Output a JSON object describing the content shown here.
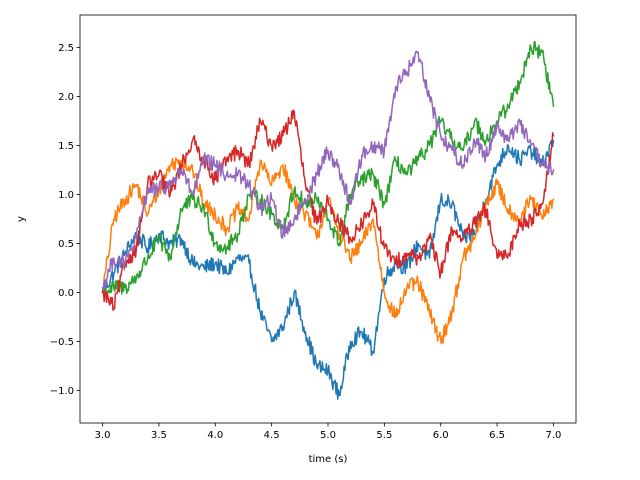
{
  "chart_data": {
    "type": "line",
    "title": "",
    "xlabel": "time (s)",
    "ylabel": "y",
    "xlim": [
      2.8,
      7.2
    ],
    "ylim": [
      -1.33,
      2.83
    ],
    "xticks": [
      3.0,
      3.5,
      4.0,
      4.5,
      5.0,
      5.5,
      6.0,
      6.5,
      7.0
    ],
    "xtick_labels": [
      "3.0",
      "3.5",
      "4.0",
      "4.5",
      "5.0",
      "5.5",
      "6.0",
      "6.5",
      "7.0"
    ],
    "yticks": [
      -1.0,
      -0.5,
      0.0,
      0.5,
      1.0,
      1.5,
      2.0,
      2.5
    ],
    "ytick_labels": [
      "−1.0",
      "−0.5",
      "0.0",
      "0.5",
      "1.0",
      "1.5",
      "2.0",
      "2.5"
    ],
    "grid": false,
    "legend": false,
    "series": [
      {
        "color": "#1f77b4",
        "x": [
          3.0,
          3.1,
          3.2,
          3.3,
          3.4,
          3.5,
          3.6,
          3.7,
          3.8,
          3.9,
          4.0,
          4.1,
          4.2,
          4.3,
          4.4,
          4.5,
          4.6,
          4.7,
          4.8,
          4.9,
          5.0,
          5.1,
          5.2,
          5.3,
          5.4,
          5.5,
          5.6,
          5.7,
          5.8,
          5.9,
          6.0,
          6.1,
          6.2,
          6.3,
          6.4,
          6.5,
          6.6,
          6.7,
          6.8,
          6.9,
          7.0
        ],
        "y": [
          0.0,
          0.2,
          0.4,
          0.6,
          0.45,
          0.6,
          0.5,
          0.55,
          0.3,
          0.25,
          0.3,
          0.2,
          0.35,
          0.3,
          -0.2,
          -0.5,
          -0.35,
          0.0,
          -0.4,
          -0.75,
          -0.8,
          -1.05,
          -0.5,
          -0.4,
          -0.6,
          0.15,
          0.3,
          0.25,
          0.5,
          0.35,
          0.95,
          0.9,
          0.55,
          0.6,
          0.95,
          1.3,
          1.5,
          1.35,
          1.45,
          1.3,
          1.55
        ]
      },
      {
        "color": "#ff7f0e",
        "x": [
          3.0,
          3.1,
          3.2,
          3.3,
          3.4,
          3.5,
          3.6,
          3.7,
          3.8,
          3.9,
          4.0,
          4.1,
          4.2,
          4.3,
          4.4,
          4.5,
          4.6,
          4.7,
          4.8,
          4.9,
          5.0,
          5.1,
          5.2,
          5.3,
          5.4,
          5.5,
          5.6,
          5.7,
          5.8,
          5.9,
          6.0,
          6.1,
          6.2,
          6.3,
          6.4,
          6.5,
          6.6,
          6.7,
          6.8,
          6.9,
          7.0
        ],
        "y": [
          0.0,
          0.75,
          0.95,
          1.1,
          0.8,
          1.05,
          1.3,
          1.35,
          1.25,
          0.9,
          0.8,
          0.65,
          0.85,
          0.75,
          1.35,
          1.1,
          1.3,
          0.95,
          0.8,
          0.55,
          0.95,
          0.6,
          0.35,
          0.5,
          0.75,
          0.0,
          -0.25,
          0.05,
          0.1,
          -0.2,
          -0.5,
          -0.2,
          0.35,
          0.55,
          0.9,
          1.1,
          0.85,
          0.75,
          0.95,
          0.75,
          0.95
        ]
      },
      {
        "color": "#2ca02c",
        "x": [
          3.0,
          3.1,
          3.2,
          3.3,
          3.4,
          3.5,
          3.6,
          3.7,
          3.8,
          3.9,
          4.0,
          4.1,
          4.2,
          4.3,
          4.4,
          4.5,
          4.6,
          4.7,
          4.8,
          4.9,
          5.0,
          5.1,
          5.2,
          5.3,
          5.4,
          5.5,
          5.6,
          5.7,
          5.8,
          5.9,
          6.0,
          6.1,
          6.2,
          6.3,
          6.4,
          6.5,
          6.6,
          6.7,
          6.8,
          6.9,
          7.0
        ],
        "y": [
          0.0,
          0.05,
          0.05,
          0.15,
          0.35,
          0.55,
          0.35,
          0.85,
          0.95,
          0.85,
          0.5,
          0.45,
          0.6,
          1.0,
          0.95,
          0.8,
          0.65,
          1.05,
          0.9,
          0.95,
          0.75,
          0.5,
          1.0,
          1.15,
          1.2,
          0.9,
          1.35,
          1.2,
          1.35,
          1.5,
          1.75,
          1.55,
          1.45,
          1.75,
          1.55,
          1.75,
          1.9,
          2.15,
          2.5,
          2.45,
          1.9
        ]
      },
      {
        "color": "#d62728",
        "x": [
          3.0,
          3.1,
          3.2,
          3.3,
          3.4,
          3.5,
          3.6,
          3.7,
          3.8,
          3.9,
          4.0,
          4.1,
          4.2,
          4.3,
          4.4,
          4.5,
          4.6,
          4.7,
          4.8,
          4.9,
          5.0,
          5.1,
          5.2,
          5.3,
          5.4,
          5.5,
          5.6,
          5.7,
          5.8,
          5.9,
          6.0,
          6.1,
          6.2,
          6.3,
          6.4,
          6.5,
          6.6,
          6.7,
          6.8,
          6.9,
          7.0
        ],
        "y": [
          0.0,
          -0.15,
          0.3,
          0.45,
          1.1,
          1.2,
          1.0,
          1.3,
          1.55,
          1.35,
          1.15,
          1.35,
          1.45,
          1.3,
          1.75,
          1.5,
          1.6,
          1.85,
          1.1,
          0.7,
          0.95,
          0.7,
          0.55,
          0.7,
          0.9,
          0.45,
          0.3,
          0.4,
          0.35,
          0.55,
          0.2,
          0.65,
          0.55,
          0.7,
          0.85,
          0.35,
          0.4,
          0.7,
          0.75,
          0.9,
          1.6
        ]
      },
      {
        "color": "#9467bd",
        "x": [
          3.0,
          3.1,
          3.2,
          3.3,
          3.4,
          3.5,
          3.6,
          3.7,
          3.8,
          3.9,
          4.0,
          4.1,
          4.2,
          4.3,
          4.4,
          4.5,
          4.6,
          4.7,
          4.8,
          4.9,
          5.0,
          5.1,
          5.2,
          5.3,
          5.4,
          5.5,
          5.6,
          5.7,
          5.8,
          5.9,
          6.0,
          6.1,
          6.2,
          6.3,
          6.4,
          6.5,
          6.6,
          6.7,
          6.8,
          6.9,
          7.0
        ],
        "y": [
          0.05,
          0.35,
          0.3,
          0.55,
          1.05,
          1.05,
          1.1,
          1.25,
          1.0,
          1.35,
          1.3,
          1.2,
          1.2,
          1.1,
          0.85,
          0.95,
          0.6,
          0.75,
          0.95,
          1.2,
          1.45,
          1.25,
          0.9,
          1.4,
          1.5,
          1.45,
          2.1,
          2.25,
          2.45,
          2.0,
          1.6,
          1.45,
          1.3,
          1.55,
          1.4,
          1.7,
          1.55,
          1.75,
          1.5,
          1.3,
          1.25
        ]
      }
    ]
  }
}
